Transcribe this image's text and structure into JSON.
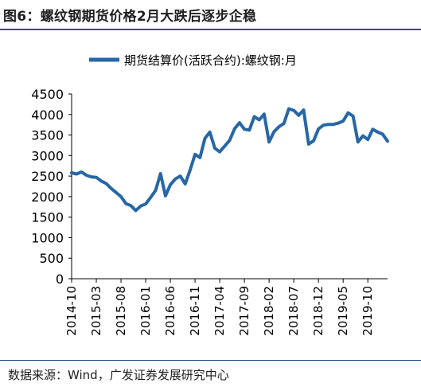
{
  "figure": {
    "title": "图6：螺纹钢期货价格2月大跌后逐步企稳",
    "source": "数据来源：Wind，广发证券发展研究中心"
  },
  "chart_data": {
    "type": "line",
    "legend": "期货结算价(活跃合约):螺纹钢:月",
    "legend_position": "top",
    "grid": false,
    "line_color": "#2767a5",
    "ylim": [
      0,
      4500
    ],
    "yticks": [
      0,
      500,
      1000,
      1500,
      2000,
      2500,
      3000,
      3500,
      4000,
      4500
    ],
    "xtick_labels": [
      "2014-10",
      "2015-03",
      "2015-08",
      "2016-01",
      "2016-06",
      "2016-11",
      "2017-04",
      "2017-09",
      "2018-02",
      "2018-07",
      "2018-12",
      "2019-05",
      "2019-10"
    ],
    "series": [
      {
        "name": "期货结算价(活跃合约):螺纹钢:月",
        "x": [
          "2014-10",
          "2014-11",
          "2014-12",
          "2015-01",
          "2015-02",
          "2015-03",
          "2015-04",
          "2015-05",
          "2015-06",
          "2015-07",
          "2015-08",
          "2015-09",
          "2015-10",
          "2015-11",
          "2015-12",
          "2016-01",
          "2016-02",
          "2016-03",
          "2016-04",
          "2016-05",
          "2016-06",
          "2016-07",
          "2016-08",
          "2016-09",
          "2016-10",
          "2016-11",
          "2016-12",
          "2017-01",
          "2017-02",
          "2017-03",
          "2017-04",
          "2017-05",
          "2017-06",
          "2017-07",
          "2017-08",
          "2017-09",
          "2017-10",
          "2017-11",
          "2017-12",
          "2018-01",
          "2018-02",
          "2018-03",
          "2018-04",
          "2018-05",
          "2018-06",
          "2018-07",
          "2018-08",
          "2018-09",
          "2018-10",
          "2018-11",
          "2018-12",
          "2019-01",
          "2019-02",
          "2019-03",
          "2019-04",
          "2019-05",
          "2019-06",
          "2019-07",
          "2019-08",
          "2019-09",
          "2019-10",
          "2019-11",
          "2019-12",
          "2020-01",
          "2020-02"
        ],
        "values": [
          2580,
          2550,
          2600,
          2520,
          2480,
          2470,
          2380,
          2320,
          2200,
          2100,
          2000,
          1830,
          1780,
          1660,
          1770,
          1820,
          1980,
          2150,
          2560,
          2020,
          2290,
          2430,
          2500,
          2310,
          2650,
          3030,
          2950,
          3420,
          3570,
          3180,
          3090,
          3230,
          3370,
          3650,
          3800,
          3640,
          3620,
          3950,
          3870,
          4010,
          3330,
          3580,
          3700,
          3780,
          4140,
          4100,
          3980,
          4110,
          3280,
          3360,
          3650,
          3740,
          3760,
          3760,
          3790,
          3840,
          4040,
          3960,
          3330,
          3480,
          3390,
          3640,
          3570,
          3520,
          3350
        ]
      }
    ]
  }
}
